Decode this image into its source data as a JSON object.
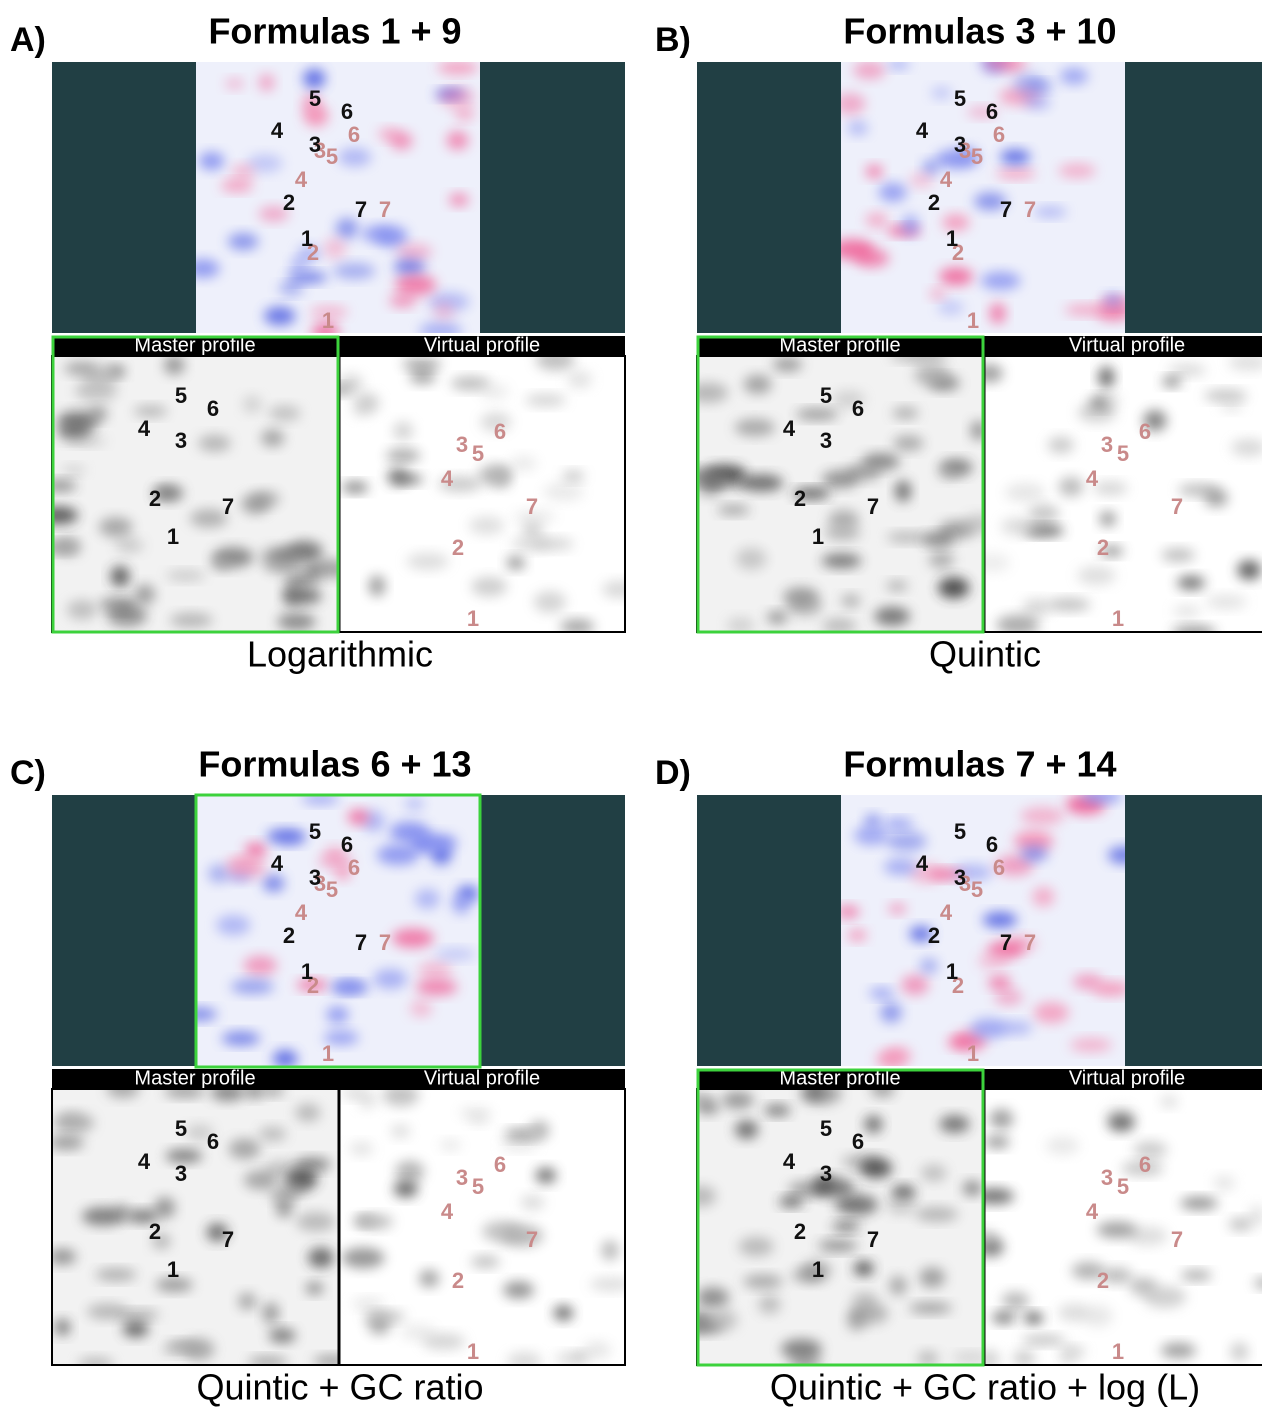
{
  "panels": [
    {
      "letter": "A)",
      "title": "Formulas 1 + 9",
      "caption": "Logarithmic",
      "master_label": "Master profile",
      "virtual_label": "Virtual profile",
      "overlay_black": [
        "5",
        "6",
        "4",
        "3",
        "2",
        "7",
        "1"
      ],
      "overlay_pink": [
        "5",
        "6",
        "4",
        "3",
        "2",
        "7",
        "1"
      ],
      "master_spots": [
        "5",
        "6",
        "4",
        "3",
        "2",
        "7",
        "1"
      ],
      "virtual_spots": [
        "5",
        "6",
        "4",
        "3",
        "2",
        "7",
        "1"
      ]
    },
    {
      "letter": "B)",
      "title": "Formulas 3 + 10",
      "caption": "Quintic",
      "master_label": "Master profile",
      "virtual_label": "Virtual profile",
      "overlay_black": [
        "5",
        "6",
        "4",
        "3",
        "2",
        "7",
        "1"
      ],
      "overlay_pink": [
        "5",
        "6",
        "4",
        "3",
        "2",
        "7",
        "1"
      ],
      "master_spots": [
        "5",
        "6",
        "4",
        "3",
        "2",
        "7",
        "1"
      ],
      "virtual_spots": [
        "5",
        "6",
        "4",
        "3",
        "2",
        "7",
        "1"
      ]
    },
    {
      "letter": "C)",
      "title": "Formulas 6 + 13",
      "caption": "Quintic + GC ratio",
      "master_label": "Master profile",
      "virtual_label": "Virtual profile",
      "overlay_black": [
        "5",
        "6",
        "4",
        "3",
        "2",
        "7",
        "1"
      ],
      "overlay_pink": [
        "5",
        "6",
        "4",
        "3",
        "2",
        "7",
        "1"
      ],
      "master_spots": [
        "5",
        "6",
        "4",
        "3",
        "2",
        "7",
        "1"
      ],
      "virtual_spots": [
        "5",
        "6",
        "4",
        "3",
        "2",
        "7",
        "1"
      ]
    },
    {
      "letter": "D)",
      "title": "Formulas 7 + 14",
      "caption": "Quintic + GC ratio + log (L)",
      "master_label": "Master profile",
      "virtual_label": "Virtual profile",
      "overlay_black": [
        "5",
        "6",
        "4",
        "3",
        "2",
        "7",
        "1"
      ],
      "overlay_pink": [
        "5",
        "6",
        "4",
        "3",
        "2",
        "7",
        "1"
      ],
      "master_spots": [
        "5",
        "6",
        "4",
        "3",
        "2",
        "7",
        "1"
      ],
      "virtual_spots": [
        "5",
        "6",
        "4",
        "3",
        "2",
        "7",
        "1"
      ]
    }
  ]
}
